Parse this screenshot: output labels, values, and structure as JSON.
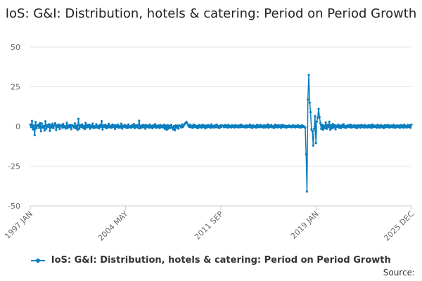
{
  "chart_data": {
    "type": "line",
    "title": "IoS: G&I: Distribution, hotels & catering: Period on Period Growth",
    "xlabel": "",
    "ylabel": "",
    "ylim": [
      -50,
      50
    ],
    "yticks": [
      "50",
      "25",
      "0",
      "-25",
      "-50"
    ],
    "xticks": [
      "1997 JAN",
      "2004 MAY",
      "2011 SEP",
      "2019 JAN",
      "2025 DEC"
    ],
    "x_start": "1997 JAN",
    "x_end": "2025 DEC",
    "grid": true,
    "legend_position": "bottom",
    "series": [
      {
        "name": "IoS: G&I: Distribution, hotels & catering: Period on Period Growth",
        "color": "#0a7dbf",
        "values": [
          1.2,
          -0.4,
          3.5,
          -1.8,
          0.6,
          -5.5,
          2.8,
          -1.2,
          0.4,
          1.1,
          -0.9,
          2.1,
          -3.0,
          1.8,
          -0.7,
          0.3,
          -2.6,
          3.2,
          -1.5,
          0.8,
          -0.2,
          1.4,
          -2.8,
          0.9,
          -0.6,
          1.7,
          -1.1,
          0.5,
          2.0,
          -2.2,
          0.7,
          -0.3,
          1.2,
          -1.6,
          0.4,
          0.9,
          -0.8,
          1.5,
          -0.5,
          0.2,
          -1.3,
          2.3,
          -0.9,
          0.6,
          -0.4,
          1.0,
          -1.7,
          0.8,
          0.3,
          -0.6,
          1.9,
          -1.2,
          0.5,
          -2.1,
          4.8,
          -1.4,
          0.7,
          -0.2,
          1.3,
          -0.9,
          0.4,
          -1.6,
          2.2,
          -0.7,
          0.9,
          -0.3,
          1.1,
          -1.4,
          0.6,
          -0.5,
          1.8,
          -1.0,
          0.2,
          -0.8,
          1.4,
          -0.6,
          0.3,
          -1.2,
          0.9,
          -0.4,
          3.3,
          -1.9,
          0.7,
          -0.2,
          1.0,
          -1.1,
          0.5,
          -0.7,
          1.6,
          -0.5,
          0.4,
          -0.9,
          1.2,
          -0.3,
          0.8,
          -1.5,
          0.6,
          -0.4,
          1.1,
          -0.8,
          0.3,
          -0.6,
          1.7,
          -1.3,
          0.5,
          -0.2,
          0.9,
          -0.7,
          0.4,
          -1.0,
          1.3,
          -0.5,
          0.2,
          -0.8,
          0.7,
          -0.3,
          1.5,
          -1.1,
          0.6,
          -0.4,
          0.8,
          -0.9,
          3.6,
          -1.2,
          0.4,
          -0.6,
          1.0,
          -0.5,
          0.7,
          -1.4,
          0.9,
          -0.3,
          0.5,
          -0.8,
          1.2,
          -0.6,
          0.3,
          -1.1,
          0.8,
          -0.2,
          1.4,
          -0.9,
          0.4,
          -0.5,
          0.6,
          -1.0,
          0.9,
          -0.4,
          0.3,
          -0.7,
          1.1,
          -1.6,
          0.5,
          -2.0,
          0.8,
          -1.3,
          0.4,
          -0.9,
          1.0,
          -0.6,
          -1.8,
          0.3,
          -2.4,
          0.6,
          -0.8,
          0.5,
          -1.4,
          0.7,
          0.2,
          -0.6,
          1.3,
          -0.4,
          0.8,
          1.5,
          2.2,
          2.9,
          1.8,
          0.6,
          -0.3,
          1.1,
          -0.5,
          0.4,
          -0.9,
          1.2,
          -0.2,
          0.6,
          -0.7,
          0.3,
          -1.1,
          0.9,
          -0.4,
          0.5,
          -0.8,
          1.0,
          -0.3,
          0.7,
          -1.2,
          0.4,
          -0.6,
          0.9,
          -0.2,
          0.5,
          -0.9,
          1.3,
          -0.5,
          0.3,
          -0.7,
          0.8,
          -0.4,
          1.1,
          -0.6,
          0.2,
          -1.0,
          0.7,
          -0.3,
          0.6,
          0.4,
          -0.5,
          0.9,
          -0.2,
          0.6,
          -0.8,
          1.0,
          -0.4,
          0.3,
          -0.6,
          0.8,
          -0.3,
          0.5,
          -0.7,
          0.9,
          -0.2,
          0.4,
          -0.6,
          0.7,
          -0.5,
          1.1,
          -0.3,
          0.6,
          -0.4,
          0.2,
          -0.7,
          0.8,
          -0.5,
          0.4,
          -0.3,
          1.2,
          -0.6,
          0.5,
          -0.9,
          0.7,
          -0.2,
          0.3,
          -0.8,
          1.0,
          -0.4,
          0.6,
          -0.5,
          0.9,
          -0.3,
          0.4,
          -0.7,
          0.8,
          -0.6,
          0.5,
          -0.4,
          1.3,
          -0.8,
          0.6,
          -0.3,
          0.9,
          -0.5,
          0.2,
          -1.0,
          1.1,
          -0.4,
          0.7,
          -0.6,
          0.8,
          -0.2,
          0.5,
          -0.9,
          1.0,
          -0.3,
          0.6,
          -0.5,
          0.4,
          -0.7,
          0.3,
          -0.2,
          0.6,
          -0.4,
          0.2,
          -0.5,
          0.7,
          -0.3,
          0.5,
          -0.6,
          0.4,
          -0.2,
          0.8,
          -0.5,
          0.3,
          -0.7,
          0.6,
          -0.3,
          0.4,
          -0.4,
          -0.8,
          -17.5,
          -41.0,
          17.0,
          32.5,
          15.0,
          9.0,
          -1.8,
          -3.0,
          -12.0,
          -1.5,
          6.5,
          -10.5,
          3.0,
          5.5,
          11.0,
          6.0,
          2.0,
          -1.5,
          1.0,
          -2.0,
          0.5,
          -1.0,
          2.5,
          -1.5,
          1.0,
          -0.5,
          3.0,
          -2.0,
          0.8,
          -1.2,
          1.5,
          -0.6,
          0.9,
          -1.8,
          0.4,
          -0.3,
          1.2,
          -0.8,
          0.5,
          -1.0,
          0.7,
          -0.4,
          1.4,
          -0.6,
          0.3,
          -0.9,
          0.6,
          -0.2,
          0.8,
          -0.5,
          1.1,
          -0.7,
          0.4,
          -0.3,
          0.9,
          -0.6,
          0.5,
          -1.1,
          0.7,
          -0.4,
          0.6,
          -0.8,
          1.0,
          -0.3,
          0.5,
          -0.7,
          0.9,
          -0.5,
          0.4,
          -0.6,
          0.8,
          -0.4,
          0.6,
          -0.9,
          1.2,
          -0.5,
          0.7,
          -0.3,
          0.4,
          -0.8,
          1.0,
          -0.6,
          0.5,
          -0.7,
          0.9,
          -0.4,
          0.3,
          -1.0,
          0.8,
          -0.5,
          0.6,
          -0.3,
          0.9,
          -0.7,
          0.5,
          -0.4,
          0.6,
          -0.5,
          1.0,
          -0.8,
          0.4,
          -0.6,
          0.7,
          -0.3,
          0.5,
          -0.9,
          0.8,
          -0.4,
          0.6,
          -0.7,
          1.1,
          -0.5,
          0.3,
          -0.6,
          0.9,
          -0.4,
          0.7,
          -0.8,
          1.2
        ]
      }
    ]
  },
  "legend": {
    "label": "IoS: G&I: Distribution, hotels & catering: Period on Period Growth"
  },
  "source": {
    "label": "Source:"
  }
}
